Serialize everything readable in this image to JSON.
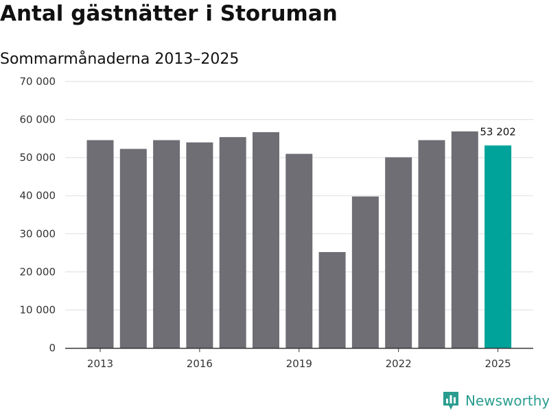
{
  "chart_data": {
    "type": "bar",
    "title": "Antal gästnätter i Storuman",
    "subtitle": "Sommarmånaderna 2013–2025",
    "categories": [
      "2013",
      "2014",
      "2015",
      "2016",
      "2017",
      "2018",
      "2019",
      "2020",
      "2021",
      "2022",
      "2023",
      "2024",
      "2025"
    ],
    "values": [
      54600,
      52300,
      54600,
      54000,
      55400,
      56700,
      51000,
      25200,
      39800,
      50100,
      54600,
      56900,
      53202
    ],
    "x_tick_labels": [
      "2013",
      "2016",
      "2019",
      "2022",
      "2025"
    ],
    "y_tick_labels": [
      "0",
      "10 000",
      "20 000",
      "30 000",
      "40 000",
      "50 000",
      "60 000",
      "70 000"
    ],
    "ylim": [
      0,
      70000
    ],
    "grid": true,
    "highlight": {
      "category": "2025",
      "label": "53 202"
    },
    "colors": {
      "bar": "#6f6e74",
      "highlight": "#00a39a",
      "grid": "#dddddd",
      "axis": "#333333"
    }
  },
  "branding": {
    "name": "Newsworthy",
    "color": "#2a9d8f"
  }
}
